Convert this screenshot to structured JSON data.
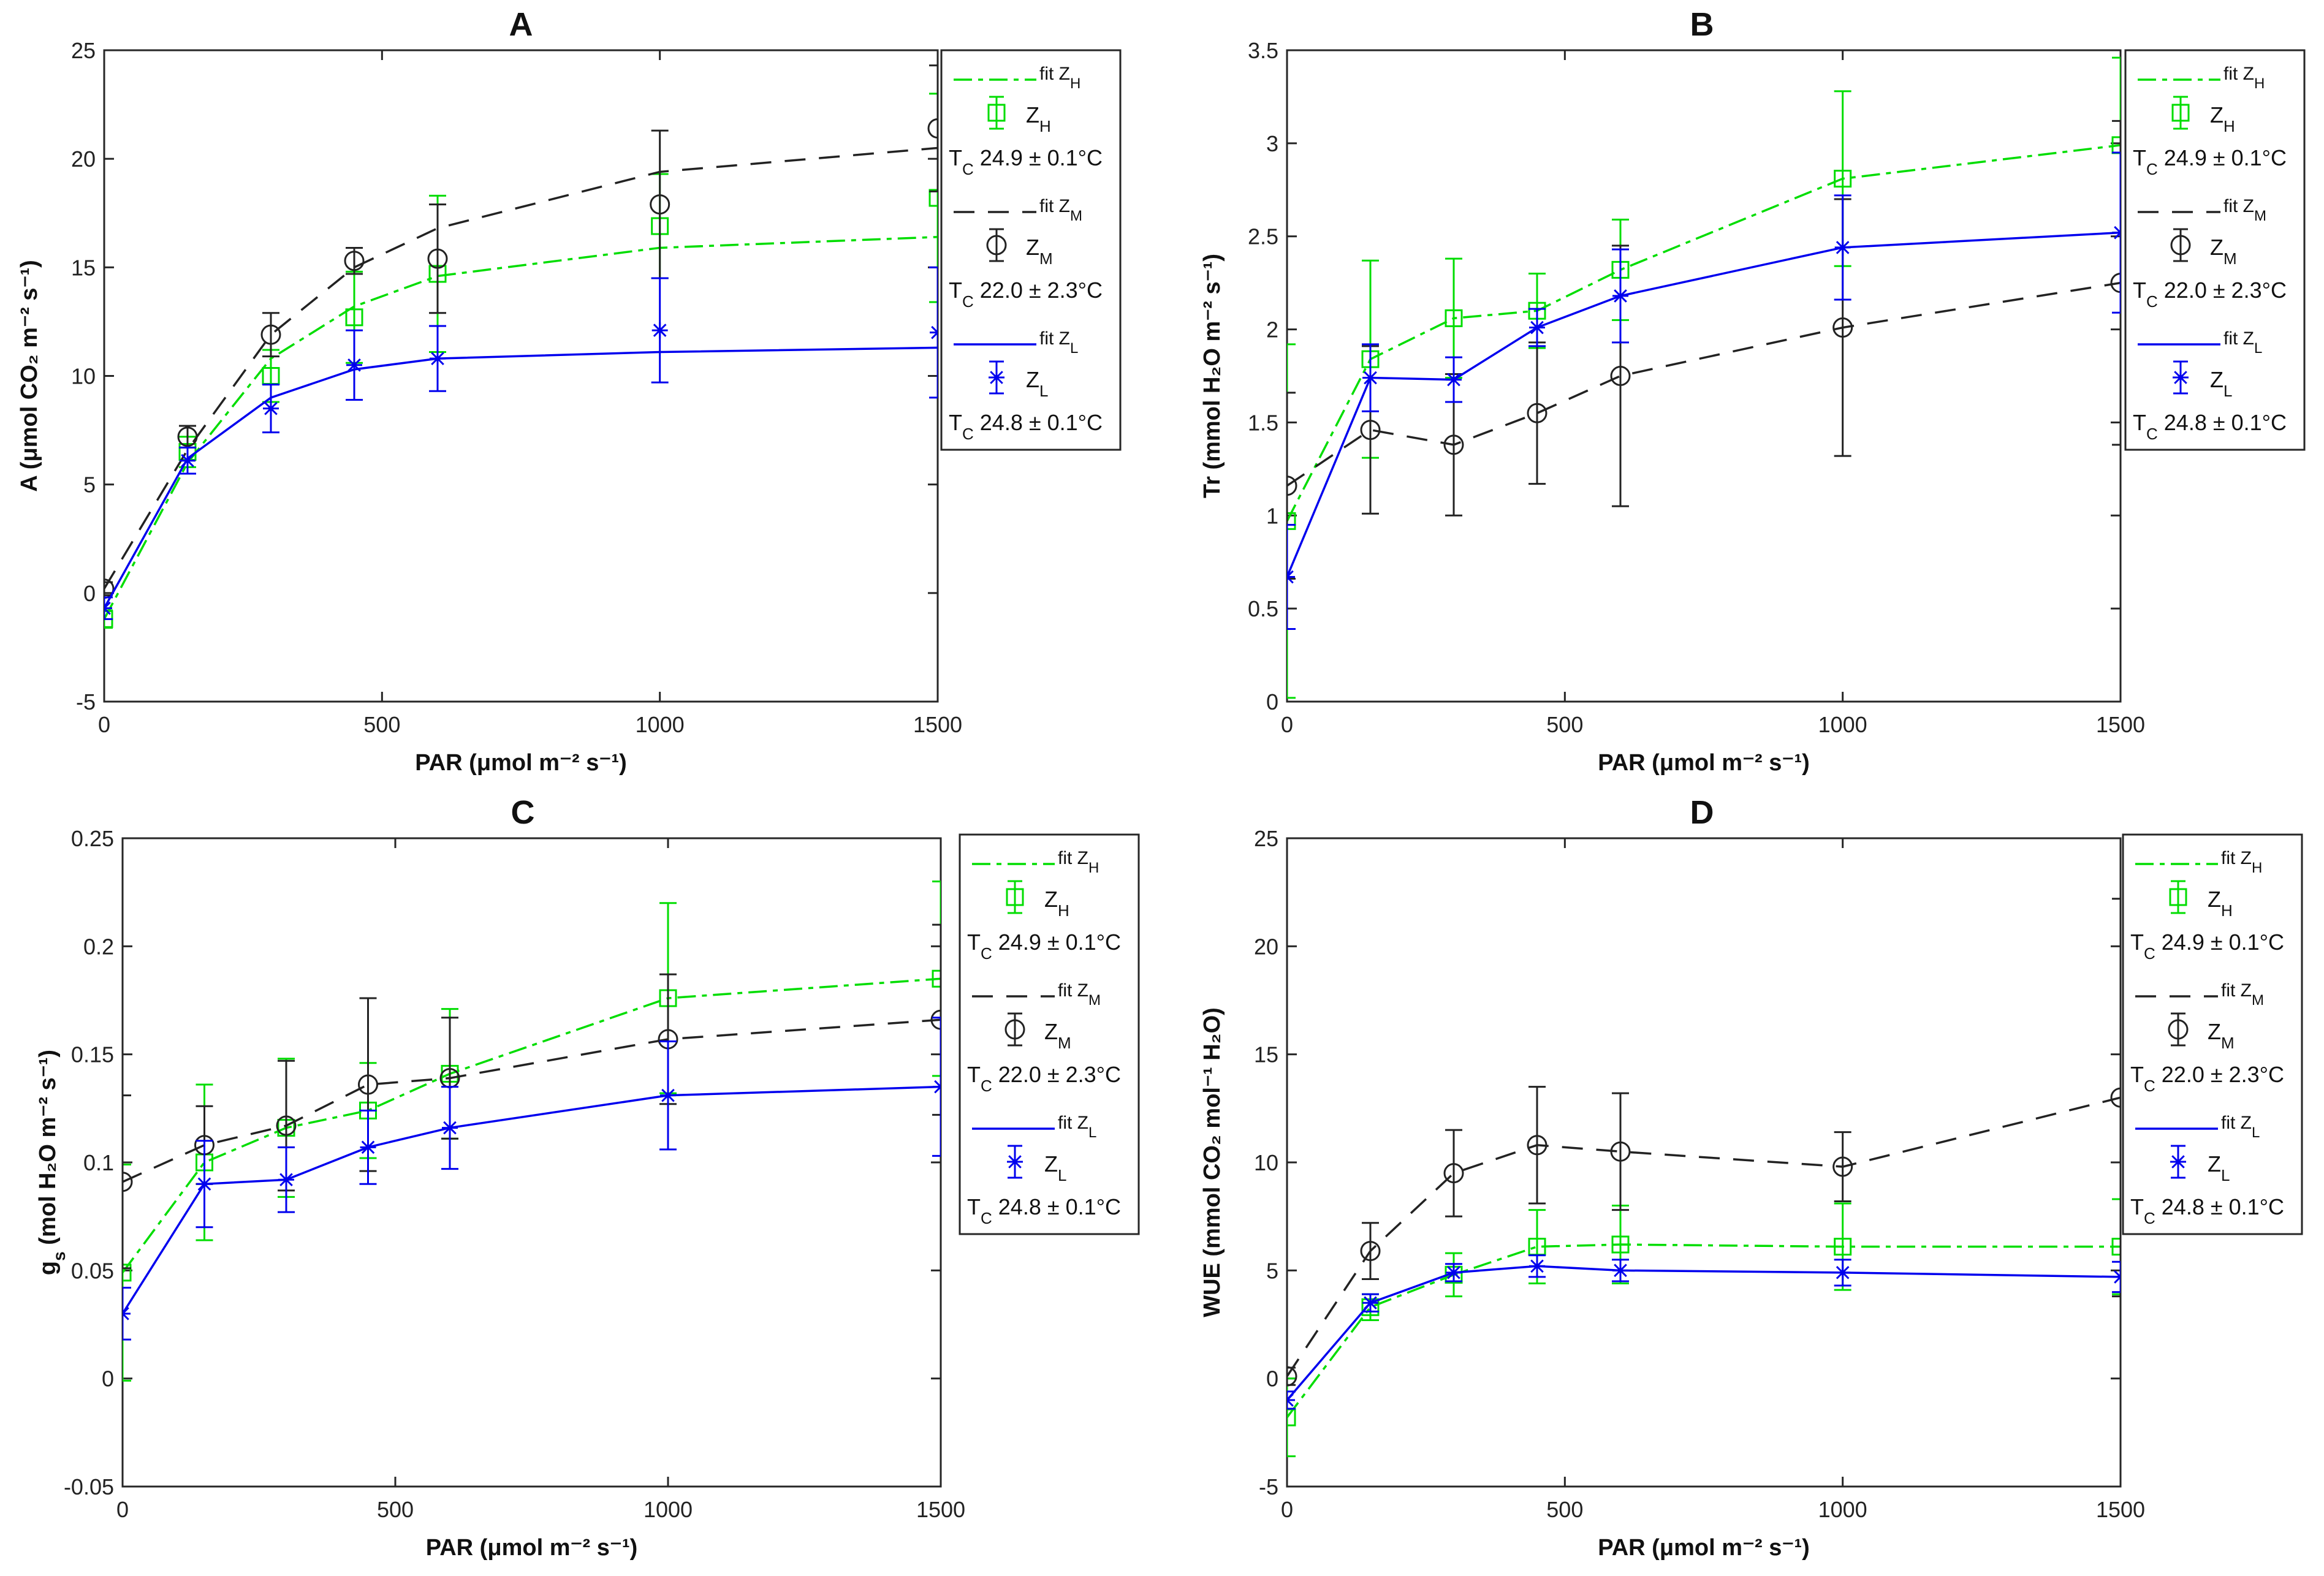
{
  "chart_data": [
    {
      "type": "line",
      "title": "A",
      "xlabel": "PAR (μmol m⁻² s⁻¹)",
      "ylabel": "A (μmol CO₂ m⁻² s⁻¹)",
      "xlim": [
        0,
        1500
      ],
      "ylim": [
        -5,
        25
      ],
      "xticks": [
        0,
        500,
        1000,
        1500
      ],
      "yticks": [
        -5,
        0,
        5,
        10,
        15,
        20,
        25
      ],
      "x": [
        0,
        150,
        300,
        450,
        600,
        1000,
        1500
      ],
      "series": [
        {
          "key": "H",
          "name": "Z_H",
          "fit_label": "fit Z_H",
          "temp_label": "T_C 24.9 ± 0.1°C",
          "values": [
            -1.2,
            6.5,
            10.0,
            12.7,
            14.7,
            16.9,
            18.2
          ],
          "err": [
            0.4,
            0.7,
            1.2,
            2.1,
            3.6,
            2.4,
            4.8
          ],
          "fit": [
            -1.2,
            6.0,
            10.8,
            13.2,
            14.6,
            15.9,
            16.4
          ]
        },
        {
          "key": "M",
          "name": "Z_M",
          "fit_label": "fit Z_M",
          "temp_label": "T_C 22.0 ± 2.3°C",
          "values": [
            0.2,
            7.2,
            11.9,
            15.3,
            15.4,
            17.9,
            21.4
          ],
          "err": [
            0.3,
            0.5,
            1.0,
            0.6,
            2.5,
            3.4,
            2.9
          ],
          "fit": [
            0.2,
            6.6,
            11.9,
            15.0,
            16.8,
            19.4,
            20.5
          ]
        },
        {
          "key": "L",
          "name": "Z_L",
          "fit_label": "fit Z_L",
          "temp_label": "T_C 24.8 ± 0.1°C",
          "values": [
            -0.7,
            6.1,
            8.5,
            10.5,
            10.8,
            12.1,
            12.0
          ],
          "err": [
            0.5,
            0.6,
            1.1,
            1.6,
            1.5,
            2.4,
            3.0
          ],
          "fit": [
            -0.7,
            6.2,
            9.0,
            10.3,
            10.8,
            11.1,
            11.3
          ]
        }
      ]
    },
    {
      "type": "line",
      "title": "B",
      "xlabel": "PAR (μmol m⁻² s⁻¹)",
      "ylabel": "Tr (mmol H₂O m⁻² s⁻¹)",
      "xlim": [
        0,
        1500
      ],
      "ylim": [
        0,
        3.5
      ],
      "xticks": [
        0,
        500,
        1000,
        1500
      ],
      "yticks": [
        0,
        0.5,
        1,
        1.5,
        2,
        2.5,
        3,
        3.5
      ],
      "x": [
        0,
        150,
        300,
        450,
        600,
        1000,
        1500
      ],
      "series": [
        {
          "key": "H",
          "name": "Z_H",
          "fit_label": "fit Z_H",
          "temp_label": "T_C 24.9 ± 0.1°C",
          "values": [
            0.97,
            1.84,
            2.06,
            2.1,
            2.32,
            2.81,
            2.99
          ],
          "err": [
            0.95,
            0.53,
            0.32,
            0.2,
            0.27,
            0.47,
            0.47
          ],
          "fit": [
            0.97,
            1.84,
            2.06,
            2.1,
            2.32,
            2.81,
            2.99
          ]
        },
        {
          "key": "M",
          "name": "Z_M",
          "fit_label": "fit Z_M",
          "temp_label": "T_C 22.0 ± 2.3°C",
          "values": [
            1.16,
            1.46,
            1.38,
            1.55,
            1.75,
            2.01,
            2.25
          ],
          "err": [
            0.5,
            0.45,
            0.38,
            0.38,
            0.7,
            0.69,
            0.87
          ],
          "fit": [
            1.16,
            1.46,
            1.38,
            1.55,
            1.75,
            2.01,
            2.25
          ]
        },
        {
          "key": "L",
          "name": "Z_L",
          "fit_label": "fit Z_L",
          "temp_label": "T_C 24.8 ± 0.1°C",
          "values": [
            0.67,
            1.74,
            1.73,
            2.01,
            2.18,
            2.44,
            2.52
          ],
          "err": [
            0.28,
            0.18,
            0.12,
            0.1,
            0.25,
            0.28,
            0.43
          ],
          "fit": [
            0.67,
            1.74,
            1.73,
            2.01,
            2.18,
            2.44,
            2.52
          ]
        }
      ]
    },
    {
      "type": "line",
      "title": "C",
      "xlabel": "PAR (μmol m⁻² s⁻¹)",
      "ylabel": "g_s (mol H₂O m⁻² s⁻¹)",
      "xlim": [
        0,
        1500
      ],
      "ylim": [
        -0.05,
        0.25
      ],
      "xticks": [
        0,
        500,
        1000,
        1500
      ],
      "yticks": [
        -0.05,
        0,
        0.05,
        0.1,
        0.15,
        0.2,
        0.25
      ],
      "x": [
        0,
        150,
        300,
        450,
        600,
        1000,
        1500
      ],
      "series": [
        {
          "key": "H",
          "name": "Z_H",
          "fit_label": "fit Z_H",
          "temp_label": "T_C 24.9 ± 0.1°C",
          "values": [
            0.049,
            0.1,
            0.116,
            0.124,
            0.141,
            0.176,
            0.185
          ],
          "err": [
            0.05,
            0.036,
            0.032,
            0.022,
            0.03,
            0.044,
            0.045
          ],
          "fit": [
            0.049,
            0.1,
            0.116,
            0.124,
            0.141,
            0.176,
            0.185
          ]
        },
        {
          "key": "M",
          "name": "Z_M",
          "fit_label": "fit Z_M",
          "temp_label": "T_C 22.0 ± 2.3°C",
          "values": [
            0.091,
            0.108,
            0.117,
            0.136,
            0.139,
            0.157,
            0.166
          ],
          "err": [
            0.04,
            0.018,
            0.03,
            0.04,
            0.028,
            0.03,
            0.044
          ],
          "fit": [
            0.091,
            0.108,
            0.117,
            0.136,
            0.139,
            0.157,
            0.166
          ]
        },
        {
          "key": "L",
          "name": "Z_L",
          "fit_label": "fit Z_L",
          "temp_label": "T_C 24.8 ± 0.1°C",
          "values": [
            0.03,
            0.09,
            0.092,
            0.107,
            0.116,
            0.131,
            0.135
          ],
          "err": [
            0.012,
            0.02,
            0.015,
            0.017,
            0.019,
            0.025,
            0.032
          ],
          "fit": [
            0.03,
            0.09,
            0.092,
            0.107,
            0.116,
            0.131,
            0.135
          ]
        }
      ]
    },
    {
      "type": "line",
      "title": "D",
      "xlabel": "PAR (μmol m⁻² s⁻¹)",
      "ylabel": "WUE (mmol CO₂ mol⁻¹ H₂O)",
      "xlim": [
        0,
        1500
      ],
      "ylim": [
        -5,
        25
      ],
      "xticks": [
        0,
        500,
        1000,
        1500
      ],
      "yticks": [
        -5,
        0,
        5,
        10,
        15,
        20,
        25
      ],
      "x": [
        0,
        150,
        300,
        450,
        600,
        1000,
        1500
      ],
      "series": [
        {
          "key": "H",
          "name": "Z_H",
          "fit_label": "fit Z_H",
          "temp_label": "T_C 24.9 ± 0.1°C",
          "values": [
            -1.8,
            3.3,
            4.8,
            6.1,
            6.2,
            6.1,
            6.1
          ],
          "err": [
            1.8,
            0.6,
            1.0,
            1.7,
            1.8,
            2.0,
            2.2
          ],
          "fit": [
            -1.8,
            3.3,
            4.8,
            6.1,
            6.2,
            6.1,
            6.1
          ]
        },
        {
          "key": "M",
          "name": "Z_M",
          "fit_label": "fit Z_M",
          "temp_label": "T_C 22.0 ± 2.3°C",
          "values": [
            0.1,
            5.9,
            9.5,
            10.8,
            10.5,
            9.8,
            13.0
          ],
          "err": [
            0.4,
            1.3,
            2.0,
            2.7,
            2.7,
            1.6,
            9.2
          ],
          "fit": [
            0.1,
            5.9,
            9.5,
            10.8,
            10.5,
            9.8,
            13.0
          ]
        },
        {
          "key": "L",
          "name": "Z_L",
          "fit_label": "fit Z_L",
          "temp_label": "T_C 24.8 ± 0.1°C",
          "values": [
            -1.0,
            3.5,
            4.9,
            5.2,
            5.0,
            4.9,
            4.7
          ],
          "err": [
            0.4,
            0.4,
            0.4,
            0.5,
            0.5,
            0.6,
            0.7
          ],
          "fit": [
            -1.0,
            3.5,
            4.9,
            5.2,
            5.0,
            4.9,
            4.7
          ]
        }
      ]
    }
  ],
  "colors": {
    "H": "#00dd00",
    "M": "#222222",
    "L": "#0000ee"
  }
}
